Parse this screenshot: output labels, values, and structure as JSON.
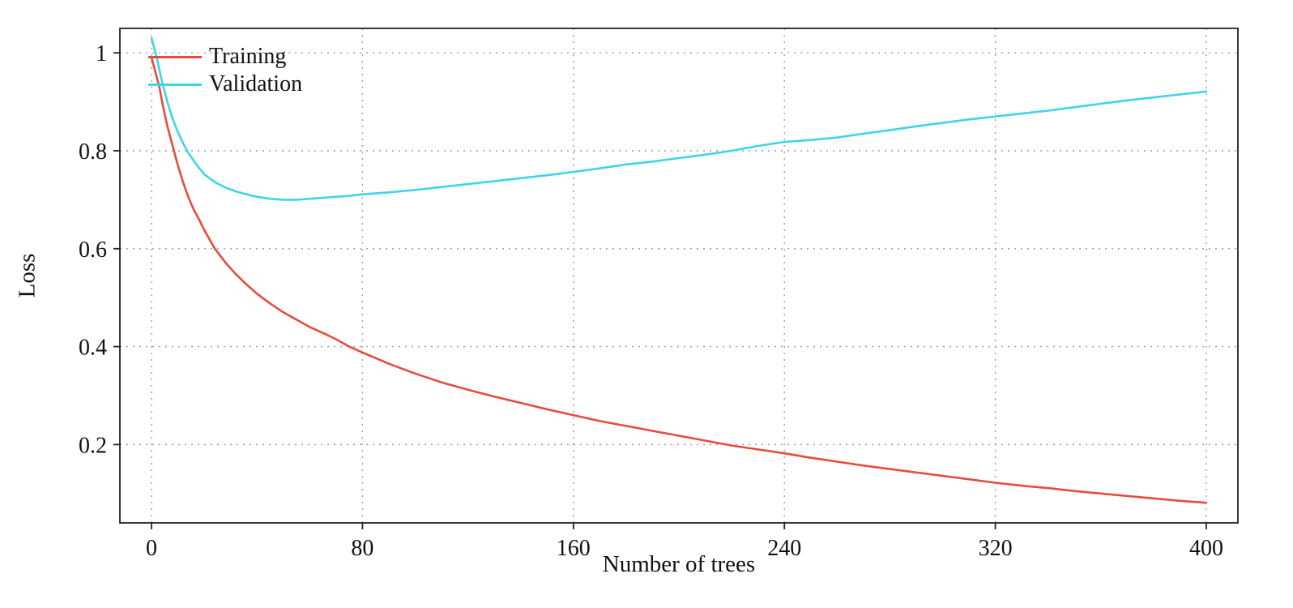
{
  "chart_data": {
    "type": "line",
    "title": "",
    "xlabel": "Number of trees",
    "ylabel": "Loss",
    "xlim": [
      -12,
      412
    ],
    "ylim": [
      0.04,
      1.05
    ],
    "xticks": [
      0,
      80,
      160,
      240,
      320,
      400
    ],
    "yticks": [
      0.2,
      0.4,
      0.6,
      0.8,
      1
    ],
    "grid": true,
    "legend_position": "top-left",
    "series": [
      {
        "name": "Training",
        "color": "#e64c3c",
        "x": [
          0,
          1,
          2,
          3,
          4,
          6,
          8,
          10,
          12,
          14,
          16,
          18,
          20,
          24,
          28,
          32,
          36,
          40,
          45,
          50,
          55,
          60,
          65,
          70,
          75,
          80,
          90,
          100,
          110,
          120,
          130,
          140,
          150,
          160,
          170,
          180,
          190,
          200,
          210,
          220,
          230,
          240,
          250,
          260,
          270,
          280,
          290,
          300,
          310,
          320,
          330,
          340,
          350,
          360,
          370,
          380,
          390,
          400
        ],
        "y": [
          0.99,
          0.97,
          0.95,
          0.93,
          0.9,
          0.85,
          0.81,
          0.77,
          0.735,
          0.705,
          0.68,
          0.66,
          0.638,
          0.6,
          0.572,
          0.548,
          0.527,
          0.508,
          0.488,
          0.47,
          0.455,
          0.44,
          0.428,
          0.415,
          0.4,
          0.388,
          0.365,
          0.345,
          0.327,
          0.312,
          0.298,
          0.285,
          0.272,
          0.26,
          0.248,
          0.238,
          0.228,
          0.218,
          0.208,
          0.198,
          0.19,
          0.182,
          0.173,
          0.165,
          0.157,
          0.15,
          0.143,
          0.136,
          0.129,
          0.122,
          0.116,
          0.111,
          0.105,
          0.1,
          0.095,
          0.09,
          0.085,
          0.081
        ]
      },
      {
        "name": "Validation",
        "color": "#3fd4e9",
        "x": [
          0,
          1,
          2,
          3,
          4,
          6,
          8,
          10,
          12,
          14,
          16,
          18,
          20,
          24,
          28,
          32,
          36,
          40,
          45,
          50,
          55,
          60,
          65,
          70,
          75,
          80,
          90,
          100,
          110,
          120,
          130,
          140,
          150,
          160,
          170,
          180,
          190,
          200,
          210,
          220,
          230,
          240,
          250,
          260,
          270,
          280,
          290,
          300,
          310,
          320,
          330,
          340,
          350,
          360,
          370,
          380,
          390,
          400
        ],
        "y": [
          1.03,
          1.01,
          0.99,
          0.965,
          0.94,
          0.9,
          0.865,
          0.838,
          0.815,
          0.795,
          0.78,
          0.765,
          0.752,
          0.736,
          0.725,
          0.717,
          0.711,
          0.706,
          0.702,
          0.7,
          0.7,
          0.702,
          0.704,
          0.706,
          0.708,
          0.711,
          0.715,
          0.72,
          0.726,
          0.732,
          0.738,
          0.744,
          0.75,
          0.757,
          0.764,
          0.772,
          0.778,
          0.785,
          0.792,
          0.8,
          0.81,
          0.818,
          0.822,
          0.827,
          0.835,
          0.842,
          0.85,
          0.857,
          0.864,
          0.87,
          0.876,
          0.882,
          0.889,
          0.896,
          0.903,
          0.909,
          0.915,
          0.921
        ]
      }
    ]
  }
}
